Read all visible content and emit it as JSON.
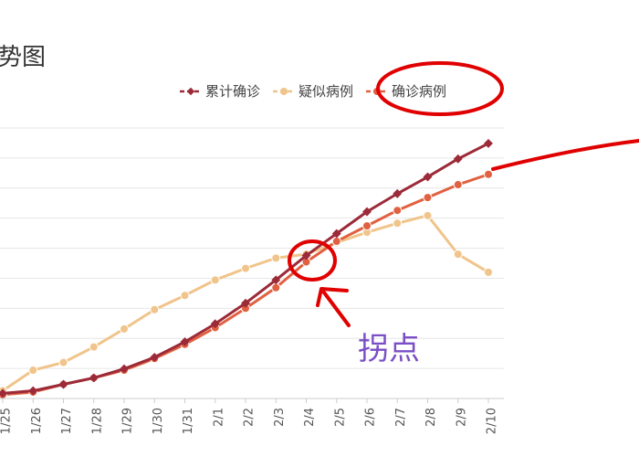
{
  "chart_data": {
    "type": "line",
    "title": "势图",
    "categories": [
      "1/25",
      "1/26",
      "1/27",
      "1/28",
      "1/29",
      "1/30",
      "1/31",
      "2/1",
      "2/2",
      "2/3",
      "2/4",
      "2/5",
      "2/6",
      "2/7",
      "2/8",
      "2/9",
      "2/10"
    ],
    "series": [
      {
        "name": "累计确诊",
        "color": "#9c2a38",
        "marker": "diamond",
        "values": [
          2.0,
          3.0,
          5.5,
          8.0,
          11.5,
          16.0,
          22.0,
          29.0,
          37.0,
          46.0,
          55.5,
          64.0,
          72.5,
          79.5,
          86.0,
          93.0,
          99.0
        ]
      },
      {
        "name": "疑似病例",
        "color": "#f0c48a",
        "marker": "circle",
        "values": [
          3.0,
          11.0,
          14.0,
          20.0,
          27.0,
          34.5,
          40.0,
          46.0,
          50.5,
          54.5,
          56.0,
          60.5,
          64.5,
          68.0,
          71.0,
          56.0,
          49.0
        ]
      },
      {
        "name": "确诊病例",
        "color": "#e06040",
        "marker": "circle",
        "values": [
          1.5,
          2.5,
          5.5,
          8.0,
          11.0,
          15.5,
          21.0,
          27.5,
          35.0,
          43.0,
          53.0,
          61.0,
          67.0,
          73.0,
          78.0,
          83.0,
          87.0
        ]
      }
    ],
    "ylim": [
      0,
      105
    ],
    "grid": true,
    "legend_position": "top-right"
  },
  "annotation": {
    "text": "拐点",
    "color": "#7a4ec6",
    "highlight_color": "#e00000"
  }
}
